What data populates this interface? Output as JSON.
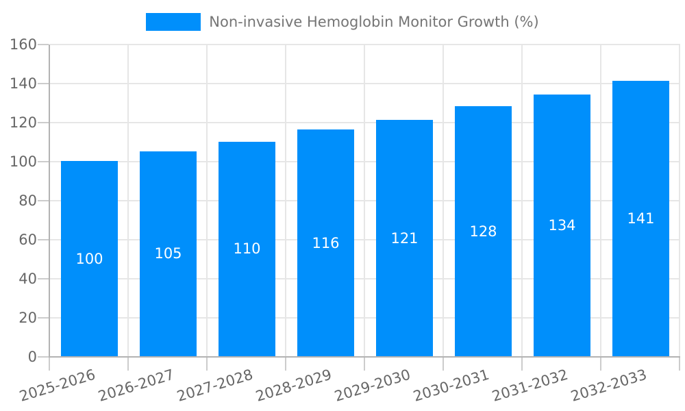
{
  "chart_data": {
    "type": "bar",
    "title": "Non-invasive Hemoglobin Monitor Growth (%)",
    "categories": [
      "2025-2026",
      "2026-2027",
      "2027-2028",
      "2028-2029",
      "2029-2030",
      "2030-2031",
      "2031-2032",
      "2032-2033"
    ],
    "values": [
      100,
      105,
      110,
      116,
      121,
      128,
      134,
      141
    ],
    "xlabel": "",
    "ylabel": "",
    "ylim": [
      0,
      160
    ],
    "y_ticks": [
      0,
      20,
      40,
      60,
      80,
      100,
      120,
      140,
      160
    ],
    "grid": "on",
    "legend_position": "top-center",
    "bar_color": "#008ffb",
    "value_label_color": "#ffffff",
    "axis_text_color": "#666666",
    "legend_text_color": "#757575",
    "gridline_color": "#e6e6e6",
    "axis_line_color": "#b3b3b3",
    "tick_color": "#cccccc",
    "background_color": "#ffffff"
  }
}
